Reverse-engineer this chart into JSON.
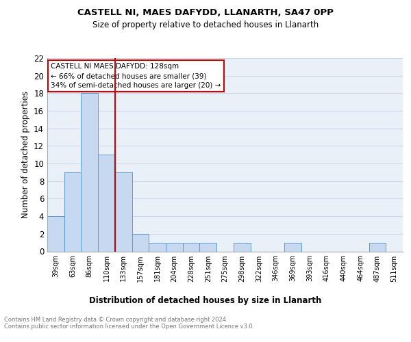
{
  "title1": "CASTELL NI, MAES DAFYDD, LLANARTH, SA47 0PP",
  "title2": "Size of property relative to detached houses in Llanarth",
  "xlabel": "Distribution of detached houses by size in Llanarth",
  "ylabel": "Number of detached properties",
  "bar_labels": [
    "39sqm",
    "63sqm",
    "86sqm",
    "110sqm",
    "133sqm",
    "157sqm",
    "181sqm",
    "204sqm",
    "228sqm",
    "251sqm",
    "275sqm",
    "298sqm",
    "322sqm",
    "346sqm",
    "369sqm",
    "393sqm",
    "416sqm",
    "440sqm",
    "464sqm",
    "487sqm",
    "511sqm"
  ],
  "bar_values": [
    4,
    9,
    18,
    11,
    9,
    2,
    1,
    1,
    1,
    1,
    0,
    1,
    0,
    0,
    1,
    0,
    0,
    0,
    0,
    1,
    0
  ],
  "bar_color": "#c6d9f0",
  "bar_edge_color": "#5b9bd5",
  "grid_color": "#d0d8e8",
  "red_line_index": 4,
  "annotation_text": "CASTELL NI MAES DAFYDD: 128sqm\n← 66% of detached houses are smaller (39)\n34% of semi-detached houses are larger (20) →",
  "annotation_box_color": "#ffffff",
  "annotation_box_edge": "#cc0000",
  "property_line_color": "#cc0000",
  "ylim": [
    0,
    22
  ],
  "yticks": [
    0,
    2,
    4,
    6,
    8,
    10,
    12,
    14,
    16,
    18,
    20,
    22
  ],
  "footer_text": "Contains HM Land Registry data © Crown copyright and database right 2024.\nContains public sector information licensed under the Open Government Licence v3.0.",
  "bg_color": "#eaf0f8"
}
